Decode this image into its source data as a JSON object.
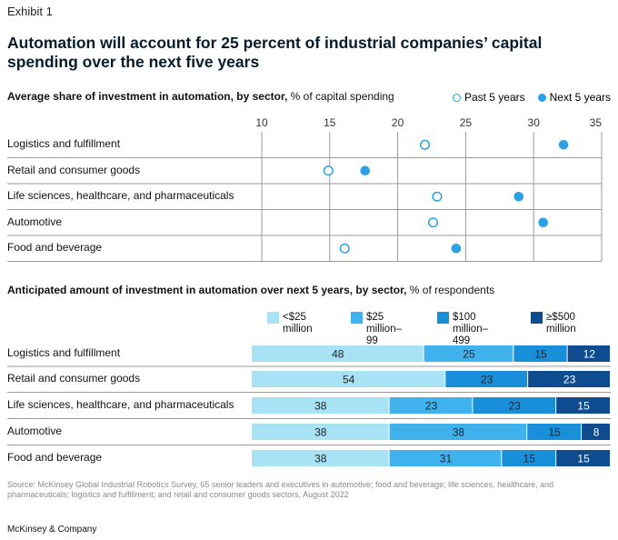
{
  "header": {
    "exhibit": "Exhibit 1",
    "title": "Automation will account for 25 percent of industrial companies’ capital spending over the next five years"
  },
  "chart1": {
    "subtitle_bold": "Average share of investment in automation, by sector,",
    "subtitle_rest": " % of capital spending",
    "legend_past": "Past 5 years",
    "legend_next": "Next 5 years"
  },
  "chart2": {
    "subtitle_bold": "Anticipated amount of investment in automation over next 5 years, by sector,",
    "subtitle_rest": " % of respondents"
  },
  "footer": {
    "source": "Source: McKinsey Global Industrial Robotics Survey, 65 senior leaders and executives in automotive; food and beverage; life sciences, healthcare, and pharmaceuticals; logistics and fulfillment; and retail and consumer goods sectors, August 2022",
    "brand": "McKinsey & Company"
  },
  "chart_data": [
    {
      "type": "scatter",
      "xlim": [
        10,
        35
      ],
      "x_ticks": [
        10,
        15,
        20,
        25,
        30,
        35
      ],
      "grid": true,
      "legend_position": "top-right",
      "categories": [
        "Logistics and fulfillment",
        "Retail and consumer goods",
        "Life sciences, healthcare, and pharmaceuticals",
        "Automotive",
        "Food and beverage"
      ],
      "series": [
        {
          "name": "Past 5 years",
          "values": [
            22.0,
            14.9,
            22.9,
            22.6,
            16.1
          ],
          "color": "#2aa0e6",
          "marker": "hollow"
        },
        {
          "name": "Next 5 years",
          "values": [
            32.2,
            17.6,
            28.9,
            30.7,
            24.3
          ],
          "color": "#2aa0e6",
          "marker": "filled"
        }
      ]
    },
    {
      "type": "bar",
      "orientation": "horizontal",
      "stacked": true,
      "categories": [
        "Logistics and fulfillment",
        "Retail and consumer goods",
        "Life sciences, healthcare, and pharmaceuticals",
        "Automotive",
        "Food and beverage"
      ],
      "series": [
        {
          "name": "<$25 million",
          "color": "#a8e3f5",
          "label_color": "#222222",
          "values": [
            48,
            54,
            38,
            38,
            38
          ]
        },
        {
          "name": "$25 million–\n99 million",
          "color": "#3fb1ec",
          "label_color": "#222222",
          "values": [
            25,
            0,
            23,
            38,
            31
          ]
        },
        {
          "name": "$100 million–\n499 million",
          "color": "#1a8fd9",
          "label_color": "#222222",
          "values": [
            15,
            23,
            23,
            15,
            15
          ]
        },
        {
          "name": "≥$500 million",
          "color": "#0f4c8f",
          "label_color": "#ffffff",
          "values": [
            12,
            23,
            15,
            8,
            15
          ]
        }
      ],
      "segment_labels": [
        [
          "48",
          "25",
          "15",
          "12"
        ],
        [
          "54",
          "",
          "23",
          "23"
        ],
        [
          "38",
          "23",
          "23",
          "15"
        ],
        [
          "38",
          "38",
          "15",
          "8"
        ],
        [
          "38",
          "31",
          "15",
          "15"
        ]
      ]
    }
  ]
}
